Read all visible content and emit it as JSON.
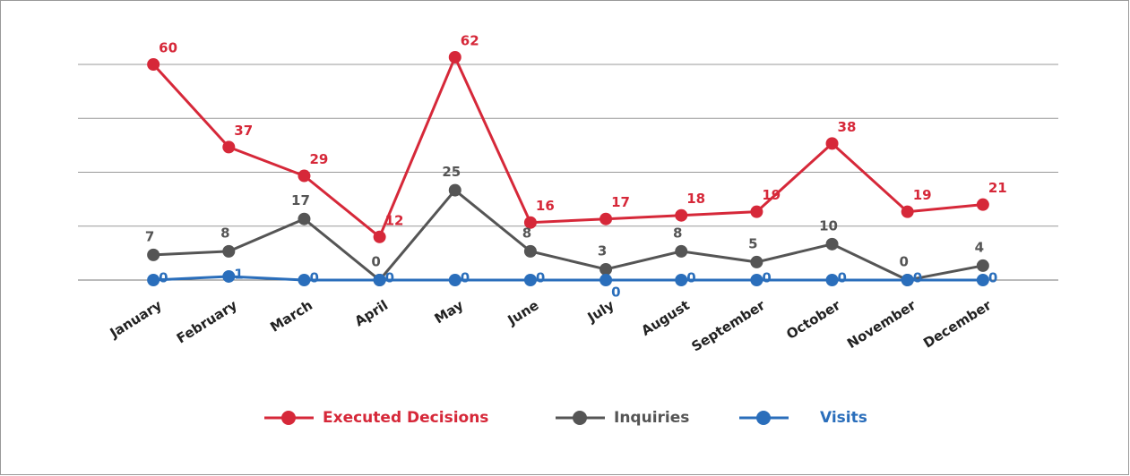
{
  "chart_data": {
    "type": "line",
    "categories": [
      "January",
      "February",
      "March",
      "April",
      "May",
      "June",
      "July",
      "August",
      "September",
      "October",
      "November",
      "December"
    ],
    "series": [
      {
        "name": "Executed Decisions",
        "color": "#d62839",
        "values": [
          60,
          37,
          29,
          12,
          62,
          16,
          17,
          18,
          19,
          38,
          19,
          21
        ]
      },
      {
        "name": "Inquiries",
        "color": "#555555",
        "values": [
          7,
          8,
          17,
          0,
          25,
          8,
          3,
          8,
          5,
          10,
          0,
          4
        ]
      },
      {
        "name": "Visits",
        "color": "#2a6ebb",
        "values": [
          0,
          1,
          0,
          0,
          0,
          0,
          0,
          0,
          0,
          0,
          0,
          0
        ]
      }
    ],
    "ylim": [
      0,
      60
    ],
    "yticks": [
      0,
      15,
      30,
      45,
      60
    ],
    "grid": true,
    "legend": "bottom"
  }
}
